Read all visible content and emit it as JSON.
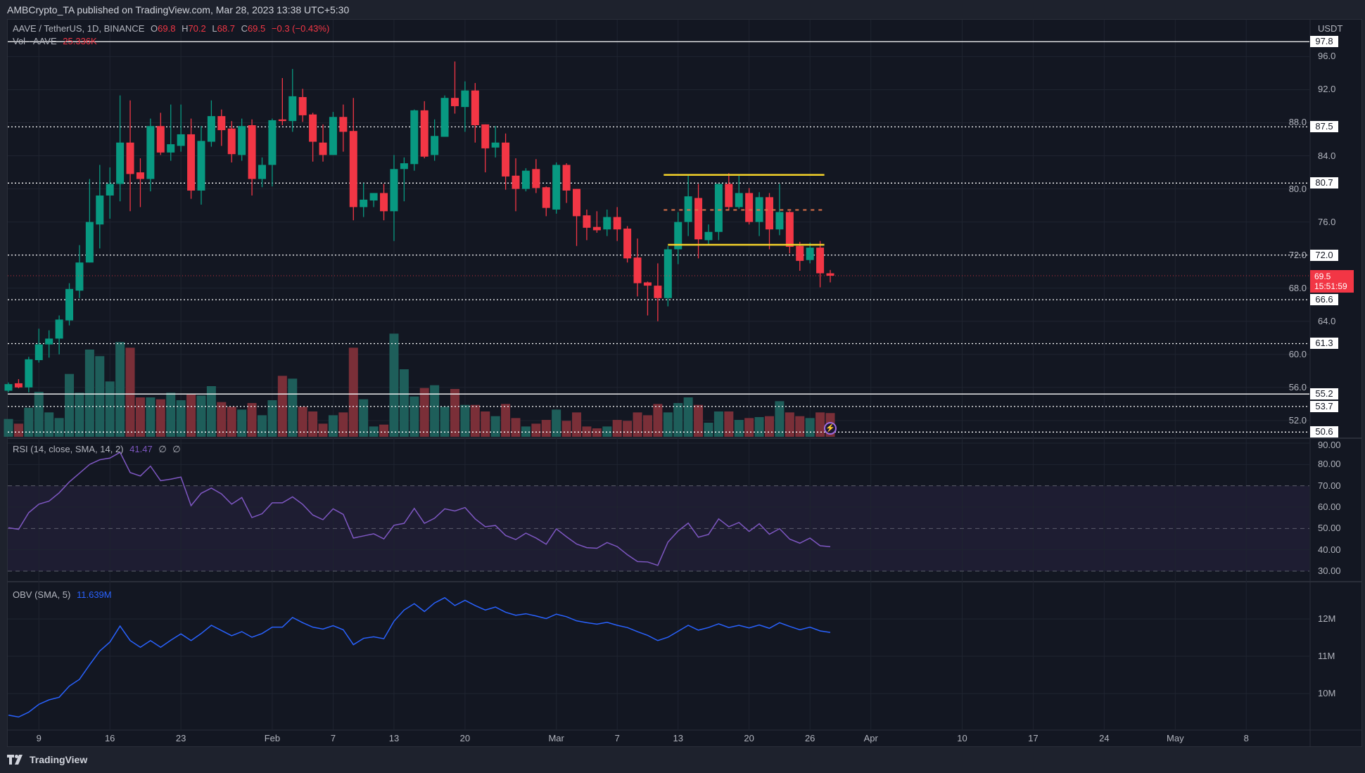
{
  "header": {
    "published": "AMBCrypto_TA published on TradingView.com, Mar 28, 2023 13:38 UTC+5:30"
  },
  "legend": {
    "symbol": "AAVE / TetherUS, 1D, BINANCE",
    "open_label": "O",
    "open": "69.8",
    "high_label": "H",
    "high": "70.2",
    "low_label": "L",
    "low": "68.7",
    "close_label": "C",
    "close": "69.5",
    "change": "−0.3 (−0.43%)",
    "vol_label": "Vol · AAVE",
    "vol_value": "25.336K"
  },
  "rsi_legend": {
    "label": "RSI (14, close, SMA, 14, 2)",
    "value": "41.47",
    "extra1": "∅",
    "extra2": "∅"
  },
  "obv_legend": {
    "label": "OBV (SMA, 5)",
    "value": "11.639M"
  },
  "price_axis": {
    "currency": "USDT",
    "ticks": [
      "96.0",
      "92.0",
      "88.0",
      "84.0",
      "80.0",
      "76.0",
      "72.0",
      "68.0",
      "64.0",
      "60.0",
      "56.0",
      "52.0"
    ]
  },
  "level_badges": [
    {
      "value": "97.8",
      "style": "solid"
    },
    {
      "value": "87.5",
      "style": "dotted"
    },
    {
      "value": "80.7",
      "style": "dotted"
    },
    {
      "value": "72.0",
      "style": "dotted"
    },
    {
      "value": "66.6",
      "style": "dotted"
    },
    {
      "value": "61.3",
      "style": "dotted"
    },
    {
      "value": "55.2",
      "style": "solid"
    },
    {
      "value": "53.7",
      "style": "dotted"
    },
    {
      "value": "50.6",
      "style": "dotted"
    }
  ],
  "current_price": {
    "value": "69.5",
    "countdown": "15:51:59"
  },
  "rsi_axis": {
    "ticks": [
      "90.00",
      "80.00",
      "70.00",
      "60.00",
      "50.00",
      "40.00",
      "30.00"
    ]
  },
  "obv_axis": {
    "ticks": [
      "12M",
      "11M",
      "10M"
    ]
  },
  "x_axis": [
    {
      "label": "9",
      "day": 3
    },
    {
      "label": "16",
      "day": 10
    },
    {
      "label": "23",
      "day": 17
    },
    {
      "label": "Feb",
      "day": 26
    },
    {
      "label": "7",
      "day": 32
    },
    {
      "label": "13",
      "day": 38
    },
    {
      "label": "20",
      "day": 45
    },
    {
      "label": "Mar",
      "day": 54
    },
    {
      "label": "7",
      "day": 60
    },
    {
      "label": "13",
      "day": 66
    },
    {
      "label": "20",
      "day": 73
    },
    {
      "label": "26",
      "day": 79
    },
    {
      "label": "Apr",
      "day": 85
    },
    {
      "label": "10",
      "day": 94
    },
    {
      "label": "17",
      "day": 101
    },
    {
      "label": "24",
      "day": 108
    },
    {
      "label": "May",
      "day": 115
    },
    {
      "label": "8",
      "day": 122
    }
  ],
  "footer": {
    "brand": "TradingView"
  },
  "colors": {
    "up": "#089981",
    "down": "#f23645",
    "vol_up": "#1e5e5a",
    "vol_down": "#7a2f38",
    "rsi": "#7e57c2",
    "obv": "#2962ff",
    "range": "#f5d32a"
  },
  "chart_data": {
    "type": "candlestick",
    "symbol": "AAVE/USDT 1D",
    "price_range": [
      49,
      99.5
    ],
    "candles_ohlc": [
      [
        55.6,
        56.6,
        55.4,
        56.4
      ],
      [
        56.5,
        57.0,
        55.9,
        56.0
      ],
      [
        56.0,
        59.7,
        55.4,
        59.4
      ],
      [
        59.3,
        63.1,
        59.0,
        61.2
      ],
      [
        61.2,
        62.9,
        59.6,
        61.9
      ],
      [
        61.9,
        64.7,
        60.0,
        64.2
      ],
      [
        64.1,
        68.6,
        63.5,
        67.9
      ],
      [
        67.7,
        73.2,
        66.8,
        71.1
      ],
      [
        71.1,
        81.2,
        71.1,
        76.0
      ],
      [
        75.7,
        82.9,
        72.8,
        79.2
      ],
      [
        79.2,
        82.6,
        76.4,
        80.6
      ],
      [
        80.6,
        91.3,
        78.5,
        85.6
      ],
      [
        85.6,
        90.7,
        77.3,
        81.8
      ],
      [
        82.0,
        83.7,
        77.8,
        81.2
      ],
      [
        81.2,
        88.5,
        79.7,
        87.6
      ],
      [
        87.6,
        89.2,
        84.1,
        84.4
      ],
      [
        84.4,
        90.2,
        83.4,
        85.4
      ],
      [
        85.2,
        90.2,
        84.5,
        86.6
      ],
      [
        86.6,
        88.5,
        78.8,
        79.8
      ],
      [
        79.8,
        87.6,
        78.1,
        85.8
      ],
      [
        85.7,
        90.7,
        85.1,
        88.8
      ],
      [
        88.8,
        89.6,
        85.2,
        87.1
      ],
      [
        87.3,
        88.2,
        83.2,
        84.2
      ],
      [
        84.1,
        88.5,
        83.4,
        87.6
      ],
      [
        87.7,
        88.4,
        79.2,
        81.2
      ],
      [
        81.2,
        83.8,
        80.2,
        82.9
      ],
      [
        82.9,
        88.5,
        80.3,
        88.3
      ],
      [
        88.4,
        93.4,
        87.7,
        88.2
      ],
      [
        88.2,
        94.5,
        86.9,
        91.2
      ],
      [
        91.1,
        92.1,
        88.1,
        88.9
      ],
      [
        89.0,
        89.2,
        83.3,
        85.7
      ],
      [
        85.6,
        87.8,
        83.3,
        84.1
      ],
      [
        84.1,
        89.3,
        84.1,
        88.7
      ],
      [
        88.7,
        90.2,
        84.5,
        86.9
      ],
      [
        87.0,
        91.0,
        76.2,
        77.8
      ],
      [
        77.8,
        80.7,
        76.6,
        78.7
      ],
      [
        78.6,
        79.5,
        77.8,
        79.5
      ],
      [
        79.5,
        80.6,
        76.2,
        77.3
      ],
      [
        77.3,
        84.1,
        73.7,
        82.4
      ],
      [
        82.4,
        83.8,
        78.5,
        83.1
      ],
      [
        83.0,
        89.6,
        82.2,
        89.5
      ],
      [
        89.5,
        90.6,
        83.7,
        83.9
      ],
      [
        84.1,
        88.4,
        83.4,
        86.4
      ],
      [
        86.3,
        91.3,
        86.3,
        91.0
      ],
      [
        91.0,
        95.4,
        89.1,
        90.0
      ],
      [
        89.9,
        93.0,
        86.9,
        91.9
      ],
      [
        91.9,
        92.8,
        85.6,
        87.7
      ],
      [
        87.8,
        87.8,
        82.0,
        84.9
      ],
      [
        85.0,
        87.6,
        83.8,
        85.6
      ],
      [
        85.6,
        86.7,
        79.9,
        81.5
      ],
      [
        81.6,
        83.7,
        77.3,
        80.0
      ],
      [
        80.0,
        82.5,
        79.7,
        82.2
      ],
      [
        82.4,
        83.6,
        79.5,
        80.1
      ],
      [
        80.2,
        80.3,
        76.7,
        77.7
      ],
      [
        77.5,
        83.2,
        77.0,
        82.9
      ],
      [
        82.9,
        83.1,
        78.3,
        79.8
      ],
      [
        80.0,
        80.0,
        73.1,
        76.7
      ],
      [
        76.8,
        77.5,
        73.8,
        75.3
      ],
      [
        75.4,
        77.3,
        74.7,
        75.0
      ],
      [
        75.1,
        77.5,
        74.3,
        76.6
      ],
      [
        76.6,
        77.8,
        73.7,
        75.1
      ],
      [
        75.2,
        75.5,
        71.1,
        71.6
      ],
      [
        71.7,
        74.0,
        67.0,
        68.6
      ],
      [
        68.7,
        68.8,
        64.7,
        68.3
      ],
      [
        68.3,
        71.0,
        64.0,
        66.8
      ],
      [
        66.8,
        73.1,
        65.8,
        72.7
      ],
      [
        72.7,
        77.2,
        70.9,
        76.0
      ],
      [
        76.0,
        81.6,
        74.3,
        79.1
      ],
      [
        78.9,
        80.6,
        71.6,
        73.9
      ],
      [
        73.8,
        75.7,
        73.2,
        74.8
      ],
      [
        74.8,
        80.6,
        73.8,
        80.6
      ],
      [
        80.6,
        81.9,
        77.4,
        77.8
      ],
      [
        77.8,
        81.6,
        77.6,
        79.5
      ],
      [
        79.5,
        80.1,
        75.7,
        76.0
      ],
      [
        76.0,
        79.6,
        74.3,
        79.0
      ],
      [
        79.0,
        79.5,
        72.7,
        75.1
      ],
      [
        75.1,
        80.6,
        74.4,
        77.2
      ],
      [
        77.2,
        77.3,
        72.2,
        73.0
      ],
      [
        73.1,
        73.6,
        70.1,
        71.3
      ],
      [
        71.4,
        73.5,
        71.0,
        72.9
      ],
      [
        72.9,
        73.7,
        68.1,
        69.8
      ],
      [
        69.8,
        70.2,
        68.7,
        69.5
      ]
    ],
    "volume_k": [
      19,
      14,
      31,
      48,
      26,
      20,
      67,
      47,
      93,
      86,
      59,
      101,
      95,
      42,
      42,
      40,
      47,
      39,
      45,
      44,
      54,
      37,
      32,
      29,
      36,
      23,
      39,
      65,
      62,
      32,
      27,
      14,
      23,
      26,
      95,
      40,
      11,
      13,
      110,
      72,
      43,
      52,
      55,
      32,
      51,
      34,
      34,
      27,
      22,
      35,
      20,
      11,
      14,
      18,
      29,
      17,
      26,
      11,
      9,
      11,
      18,
      17,
      26,
      23,
      35,
      26,
      36,
      42,
      34,
      15,
      27,
      27,
      18,
      20,
      21,
      22,
      38,
      26,
      22,
      20,
      26,
      25.3
    ],
    "rsi": [
      50.3,
      49.6,
      57.4,
      61.4,
      62.8,
      66.7,
      71.8,
      75.9,
      80.0,
      82.2,
      83.0,
      85.7,
      76.2,
      74.6,
      79.2,
      72.4,
      73.1,
      74.1,
      60.7,
      66.5,
      68.9,
      66.2,
      61.4,
      64.5,
      55.1,
      56.9,
      62.0,
      62.0,
      64.8,
      61.3,
      56.3,
      54.1,
      59.2,
      56.6,
      45.5,
      46.5,
      47.5,
      45.1,
      51.5,
      52.4,
      59.4,
      52.4,
      54.8,
      59.2,
      58.2,
      59.8,
      54.5,
      50.8,
      51.4,
      46.7,
      44.8,
      47.8,
      45.5,
      42.6,
      49.8,
      46.1,
      42.7,
      41.0,
      40.7,
      43.4,
      41.5,
      37.7,
      34.5,
      34.3,
      32.7,
      43.6,
      48.8,
      52.5,
      45.9,
      47.2,
      54.5,
      50.8,
      52.8,
      48.6,
      52.2,
      47.3,
      49.9,
      45.0,
      43.1,
      45.5,
      41.9,
      41.47
    ],
    "rsi_bands": [
      70,
      50,
      30
    ],
    "rsi_range": [
      27,
      92
    ],
    "obv_m": [
      9.42,
      9.37,
      9.5,
      9.71,
      9.83,
      9.9,
      10.2,
      10.38,
      10.77,
      11.14,
      11.38,
      11.81,
      11.42,
      11.24,
      11.42,
      11.24,
      11.43,
      11.6,
      11.42,
      11.61,
      11.83,
      11.69,
      11.55,
      11.66,
      11.51,
      11.61,
      11.78,
      11.78,
      12.04,
      11.9,
      11.78,
      11.73,
      11.82,
      11.71,
      11.31,
      11.48,
      11.52,
      11.47,
      11.94,
      12.24,
      12.41,
      12.2,
      12.43,
      12.57,
      12.36,
      12.5,
      12.36,
      12.24,
      12.32,
      12.18,
      12.1,
      12.14,
      12.08,
      12.01,
      12.13,
      12.06,
      11.95,
      11.9,
      11.86,
      11.91,
      11.83,
      11.77,
      11.66,
      11.56,
      11.42,
      11.51,
      11.67,
      11.83,
      11.7,
      11.77,
      11.87,
      11.77,
      11.83,
      11.76,
      11.84,
      11.75,
      11.9,
      11.8,
      11.71,
      11.78,
      11.68,
      11.639
    ],
    "range_lines": {
      "top": 81.7,
      "mid": 77.45,
      "bottom": 73.25,
      "start_candle": 66,
      "end_candle": 81
    }
  }
}
